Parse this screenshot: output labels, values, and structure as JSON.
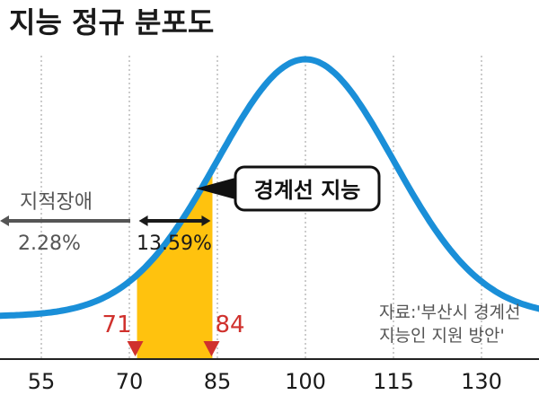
{
  "chart_data": {
    "type": "area",
    "title": "지능 정규 분포도",
    "x": {
      "ticks": [
        55,
        70,
        85,
        100,
        115,
        130
      ],
      "min": 45,
      "max": 142
    },
    "distribution": {
      "mean": 100,
      "sd": 15
    },
    "grid": "vertical dashed",
    "highlight": {
      "range": [
        71,
        84
      ],
      "label": "경계선 지능",
      "percent": "13.59%",
      "color": "#ffc20e"
    },
    "left_tail": {
      "label": "지적장애",
      "percent": "2.28%"
    },
    "markers": [
      {
        "value": 71,
        "label": "71"
      },
      {
        "value": 84,
        "label": "84"
      }
    ],
    "curve_color": "#1a8fd8",
    "marker_color": "#d0312d",
    "source": [
      "자료:'부산시 경계선",
      "지능인 지원 방안'"
    ]
  }
}
